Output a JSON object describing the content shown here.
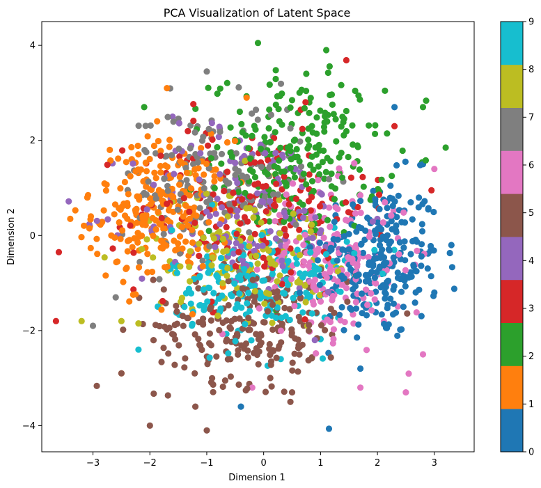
{
  "chart_data": {
    "type": "scatter",
    "title": "PCA Visualization of Latent Space",
    "xlabel": "Dimension 1",
    "ylabel": "Dimension 2",
    "xlim": [
      -3.9,
      3.7
    ],
    "ylim": [
      -4.55,
      4.5
    ],
    "xticks": [
      -3,
      -2,
      -1,
      0,
      1,
      2,
      3
    ],
    "yticks": [
      -4,
      -2,
      0,
      2,
      4
    ],
    "grid": false,
    "colorbar": {
      "range": [
        0,
        9
      ],
      "ticks": [
        0,
        1,
        2,
        3,
        4,
        5,
        6,
        7,
        8,
        9
      ],
      "colormap": [
        "#1f77b4",
        "#ff7f0e",
        "#2ca02c",
        "#d62728",
        "#9467bd",
        "#8c564b",
        "#e377c2",
        "#7f7f7f",
        "#bcbd22",
        "#17becf"
      ]
    },
    "series": [
      {
        "class": 0,
        "color": "#1f77b4",
        "center": [
          2.0,
          -0.5
        ],
        "spread": [
          0.55,
          0.85
        ],
        "count": 260,
        "outliers": [
          [
            3.3,
            -0.2
          ],
          [
            2.3,
            2.7
          ],
          [
            -0.4,
            -3.6
          ],
          [
            1.7,
            -2.8
          ],
          [
            2.8,
            1.5
          ],
          [
            3.0,
            -1.2
          ]
        ]
      },
      {
        "class": 1,
        "color": "#ff7f0e",
        "center": [
          -1.8,
          0.5
        ],
        "spread": [
          0.6,
          0.75
        ],
        "count": 260,
        "outliers": [
          [
            -3.4,
            0.35
          ],
          [
            -1.7,
            3.1
          ],
          [
            -2.5,
            -2.9
          ],
          [
            -0.3,
            2.9
          ],
          [
            -3.1,
            0.8
          ]
        ]
      },
      {
        "class": 2,
        "color": "#2ca02c",
        "center": [
          0.6,
          1.7
        ],
        "spread": [
          0.75,
          0.85
        ],
        "count": 230,
        "outliers": [
          [
            -0.1,
            4.05
          ],
          [
            1.1,
            3.9
          ],
          [
            3.2,
            1.85
          ],
          [
            -2.1,
            2.7
          ],
          [
            2.8,
            2.7
          ]
        ]
      },
      {
        "class": 3,
        "color": "#d62728",
        "center": [
          -0.2,
          0.6
        ],
        "spread": [
          1.0,
          0.9
        ],
        "count": 180,
        "outliers": [
          [
            -3.6,
            -0.35
          ],
          [
            -3.65,
            -1.8
          ],
          [
            2.95,
            0.95
          ],
          [
            2.3,
            2.3
          ]
        ]
      },
      {
        "class": 4,
        "color": "#9467bd",
        "center": [
          -0.3,
          0.5
        ],
        "spread": [
          1.0,
          0.9
        ],
        "count": 150,
        "outliers": [
          [
            -1.6,
            2.5
          ],
          [
            0.9,
            -2.2
          ]
        ]
      },
      {
        "class": 5,
        "color": "#8c564b",
        "center": [
          -0.2,
          -1.9
        ],
        "spread": [
          0.85,
          0.6
        ],
        "count": 230,
        "outliers": [
          [
            -1.0,
            -4.1
          ],
          [
            -2.0,
            -4.0
          ],
          [
            -1.2,
            -3.6
          ],
          [
            -2.5,
            -2.9
          ],
          [
            0.5,
            -3.3
          ]
        ]
      },
      {
        "class": 6,
        "color": "#e377c2",
        "center": [
          1.2,
          -0.6
        ],
        "spread": [
          0.65,
          0.8
        ],
        "count": 200,
        "outliers": [
          [
            2.5,
            -3.3
          ],
          [
            2.8,
            -2.5
          ],
          [
            1.7,
            -3.2
          ],
          [
            -0.2,
            -3.2
          ],
          [
            3.0,
            1.4
          ]
        ]
      },
      {
        "class": 7,
        "color": "#7f7f7f",
        "center": [
          -0.9,
          1.2
        ],
        "spread": [
          0.8,
          0.8
        ],
        "count": 170,
        "outliers": [
          [
            -3.0,
            -1.9
          ],
          [
            -1.0,
            3.45
          ],
          [
            -2.6,
            -1.3
          ]
        ]
      },
      {
        "class": 8,
        "color": "#bcbd22",
        "center": [
          -0.4,
          -0.3
        ],
        "spread": [
          0.8,
          0.65
        ],
        "count": 150,
        "outliers": [
          [
            -3.2,
            -1.8
          ],
          [
            -2.2,
            -1.85
          ],
          [
            -2.5,
            -1.8
          ]
        ]
      },
      {
        "class": 9,
        "color": "#17becf",
        "center": [
          0.0,
          -1.0
        ],
        "spread": [
          0.8,
          0.6
        ],
        "count": 200,
        "outliers": [
          [
            -2.2,
            -2.4
          ],
          [
            0.3,
            -2.6
          ]
        ]
      }
    ]
  }
}
